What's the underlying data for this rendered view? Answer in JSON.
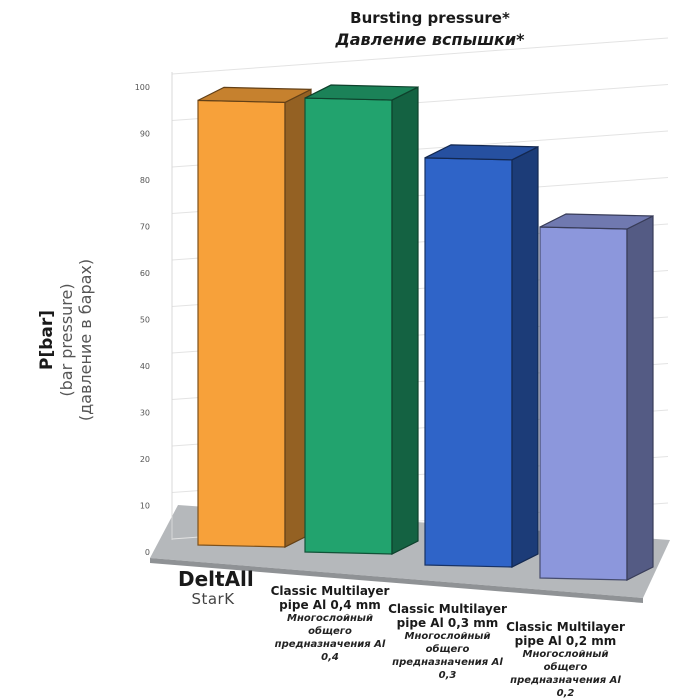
{
  "chart_data": {
    "type": "bar",
    "title": "Bursting pressure*",
    "subtitle": "Давление вспышки*",
    "ylabel_lines": [
      "P[bar]",
      "(bar pressure)",
      "(давление в барах)"
    ],
    "ylim": [
      0,
      100
    ],
    "yticks": [
      0,
      10,
      20,
      30,
      40,
      50,
      60,
      70,
      80,
      90,
      100
    ],
    "grid": true,
    "categories": [
      {
        "name": "DeltAll",
        "sub": "StarK"
      },
      {
        "name": "Classic Multilayer pipe Al 0,4 mm",
        "sub": "Многослойный общего предназначения Al 0,4"
      },
      {
        "name": "Classic Multilayer pipe Al 0,3 mm",
        "sub": "Многослойный общего предназначения Al 0,3"
      },
      {
        "name": "Classic Multilayer pipe Al 0,2 mm",
        "sub": "Многослойный общего предназначения Al 0,2"
      }
    ],
    "values": [
      95,
      97,
      87,
      75
    ],
    "colors": [
      "#f7a13a",
      "#22a36e",
      "#2f64c8",
      "#8c97dc"
    ]
  }
}
